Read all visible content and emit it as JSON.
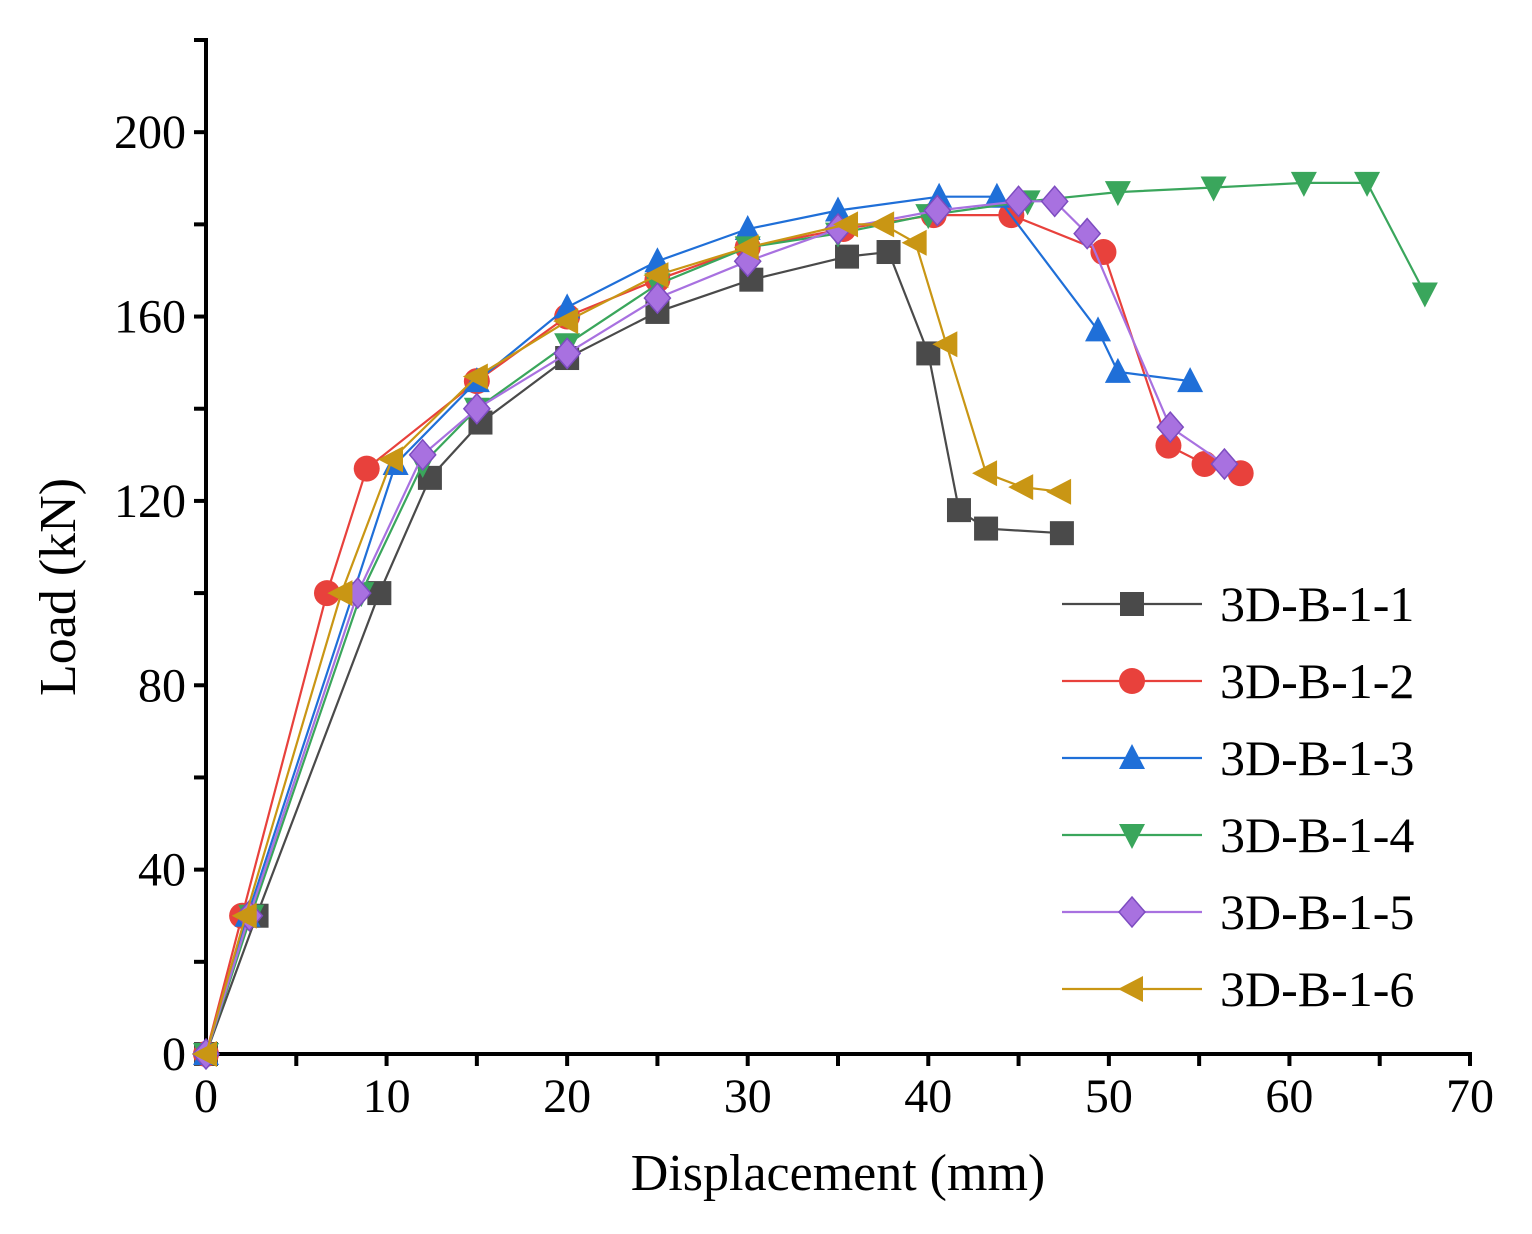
{
  "chart_data": {
    "type": "line",
    "title": "",
    "xlabel": "Displacement (mm)",
    "ylabel": "Load (kN)",
    "xlim": [
      0,
      70
    ],
    "ylim": [
      0,
      220
    ],
    "x_ticks": [
      0,
      10,
      20,
      30,
      40,
      50,
      60,
      70
    ],
    "y_ticks": [
      0,
      40,
      80,
      120,
      160,
      200
    ],
    "x_tick_labels": [
      "0",
      "10",
      "20",
      "30",
      "40",
      "50",
      "60",
      "70"
    ],
    "y_tick_labels": [
      "0",
      "40",
      "80",
      "120",
      "160",
      "200"
    ],
    "grid": false,
    "legend_position": "bottom-right",
    "series": [
      {
        "name": "3D-B-1-1",
        "color": "#4a4a4a",
        "marker": "square",
        "x": [
          0,
          2.8,
          9.6,
          12.4,
          15.2,
          20.0,
          25.0,
          30.2,
          35.5,
          37.8,
          40.0,
          41.7,
          43.2,
          47.4
        ],
        "y": [
          0,
          30,
          100,
          125,
          137,
          151,
          161,
          168,
          173,
          174,
          152,
          118,
          114,
          113
        ]
      },
      {
        "name": "3D-B-1-2",
        "color": "#e8413c",
        "marker": "circle",
        "x": [
          0,
          2.0,
          6.7,
          8.9,
          15.0,
          20.0,
          25.0,
          30.0,
          35.3,
          40.3,
          44.6,
          49.7,
          53.3,
          55.3,
          57.3
        ],
        "y": [
          0,
          30,
          100,
          127,
          146,
          160,
          168,
          175,
          179,
          182,
          182,
          174,
          132,
          128,
          126
        ]
      },
      {
        "name": "3D-B-1-3",
        "color": "#1f6fd8",
        "marker": "triangle-up",
        "x": [
          0,
          2.3,
          10.5,
          15.0,
          20.0,
          25.0,
          30.0,
          35.0,
          40.6,
          43.8,
          49.4,
          50.5,
          54.5
        ],
        "y": [
          0,
          30,
          128,
          146,
          162,
          172,
          179,
          183,
          186,
          186,
          157,
          148,
          146
        ]
      },
      {
        "name": "3D-B-1-4",
        "color": "#3aa65c",
        "marker": "triangle-down",
        "x": [
          0,
          2.5,
          8.6,
          12.0,
          15.0,
          20.0,
          25.0,
          30.0,
          35.0,
          40.0,
          45.5,
          50.5,
          55.8,
          60.8,
          64.3,
          67.5
        ],
        "y": [
          0,
          30,
          100,
          128,
          140,
          154,
          167,
          175,
          178,
          182,
          185,
          187,
          188,
          189,
          189,
          165
        ]
      },
      {
        "name": "3D-B-1-5",
        "color": "#a871e0",
        "marker": "diamond",
        "x": [
          0,
          2.4,
          8.4,
          12.0,
          15.0,
          20.0,
          25.0,
          30.0,
          35.0,
          40.5,
          45.0,
          47.0,
          48.8,
          53.4,
          56.4
        ],
        "y": [
          0,
          30,
          100,
          130,
          140,
          152,
          164,
          172,
          179,
          183,
          185,
          185,
          178,
          136,
          128
        ]
      },
      {
        "name": "3D-B-1-6",
        "color": "#c99614",
        "marker": "triangle-left",
        "x": [
          0,
          2.2,
          7.5,
          10.3,
          15.0,
          20.0,
          25.0,
          30.0,
          35.5,
          37.5,
          39.3,
          41.0,
          43.2,
          45.2,
          47.3
        ],
        "y": [
          0,
          30,
          100,
          129,
          147,
          159,
          169,
          175,
          180,
          180,
          176,
          154,
          126,
          123,
          122
        ]
      }
    ]
  }
}
